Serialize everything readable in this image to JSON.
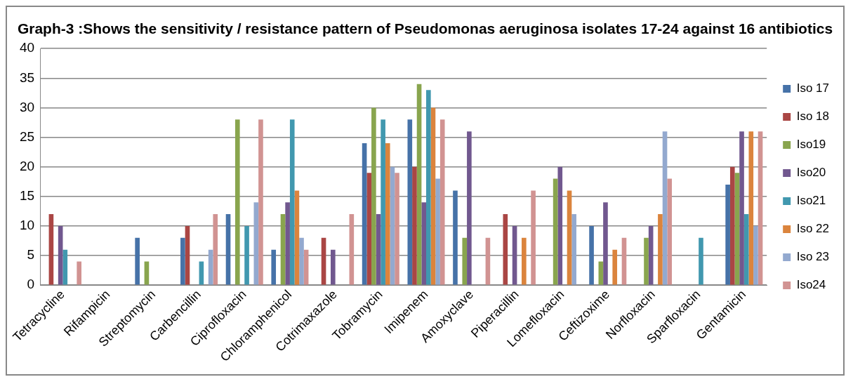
{
  "chart_data": {
    "type": "bar",
    "title": "Graph-3 :Shows the sensitivity / resistance pattern of Pseudomonas aeruginosa isolates 17-24 against 16 antibiotics",
    "categories": [
      "Tetracycline",
      "Rifampicin",
      "Streptomycin",
      "Carbencillin",
      "Ciprofloxacin",
      "Chloramphenicol",
      "Cotrimaxazole",
      "Tobramycin",
      "Imipenem",
      "Amoxyclave",
      "Piperacillin",
      "Lomefloxacin",
      "Ceftizoxime",
      "Norfloxacin",
      "Sparfloxacin",
      "Gentamicin"
    ],
    "series": [
      {
        "name": "Iso 17",
        "color": "#4672a8",
        "values": [
          0,
          0,
          8,
          8,
          12,
          6,
          0,
          24,
          28,
          16,
          0,
          0,
          10,
          0,
          0,
          17
        ]
      },
      {
        "name": "Iso 18",
        "color": "#aa4644",
        "values": [
          12,
          0,
          0,
          10,
          0,
          0,
          8,
          19,
          20,
          0,
          12,
          0,
          0,
          0,
          0,
          20
        ]
      },
      {
        "name": "Iso19",
        "color": "#89a54e",
        "values": [
          0,
          0,
          4,
          0,
          28,
          12,
          0,
          30,
          34,
          8,
          0,
          18,
          4,
          8,
          0,
          19
        ]
      },
      {
        "name": "Iso20",
        "color": "#71588f",
        "values": [
          10,
          0,
          0,
          0,
          0,
          14,
          6,
          12,
          14,
          26,
          10,
          20,
          14,
          10,
          0,
          26
        ]
      },
      {
        "name": "Iso21",
        "color": "#4198af",
        "values": [
          6,
          0,
          0,
          4,
          10,
          28,
          0,
          28,
          33,
          0,
          0,
          0,
          0,
          0,
          8,
          12
        ]
      },
      {
        "name": "Iso 22",
        "color": "#db843d",
        "values": [
          0,
          0,
          0,
          0,
          0,
          16,
          0,
          24,
          30,
          0,
          8,
          16,
          6,
          12,
          0,
          26
        ]
      },
      {
        "name": "Iso 23",
        "color": "#93a9cf",
        "values": [
          0,
          0,
          0,
          6,
          14,
          8,
          0,
          20,
          18,
          0,
          0,
          12,
          0,
          26,
          0,
          10
        ]
      },
      {
        "name": "Iso24",
        "color": "#d19392",
        "values": [
          4,
          0,
          0,
          12,
          28,
          6,
          12,
          19,
          28,
          8,
          16,
          0,
          8,
          18,
          0,
          26
        ]
      }
    ],
    "ylim": [
      0,
      40
    ],
    "yticks": [
      0,
      5,
      10,
      15,
      20,
      25,
      30,
      35,
      40
    ],
    "grid": "y",
    "legend": "right"
  }
}
